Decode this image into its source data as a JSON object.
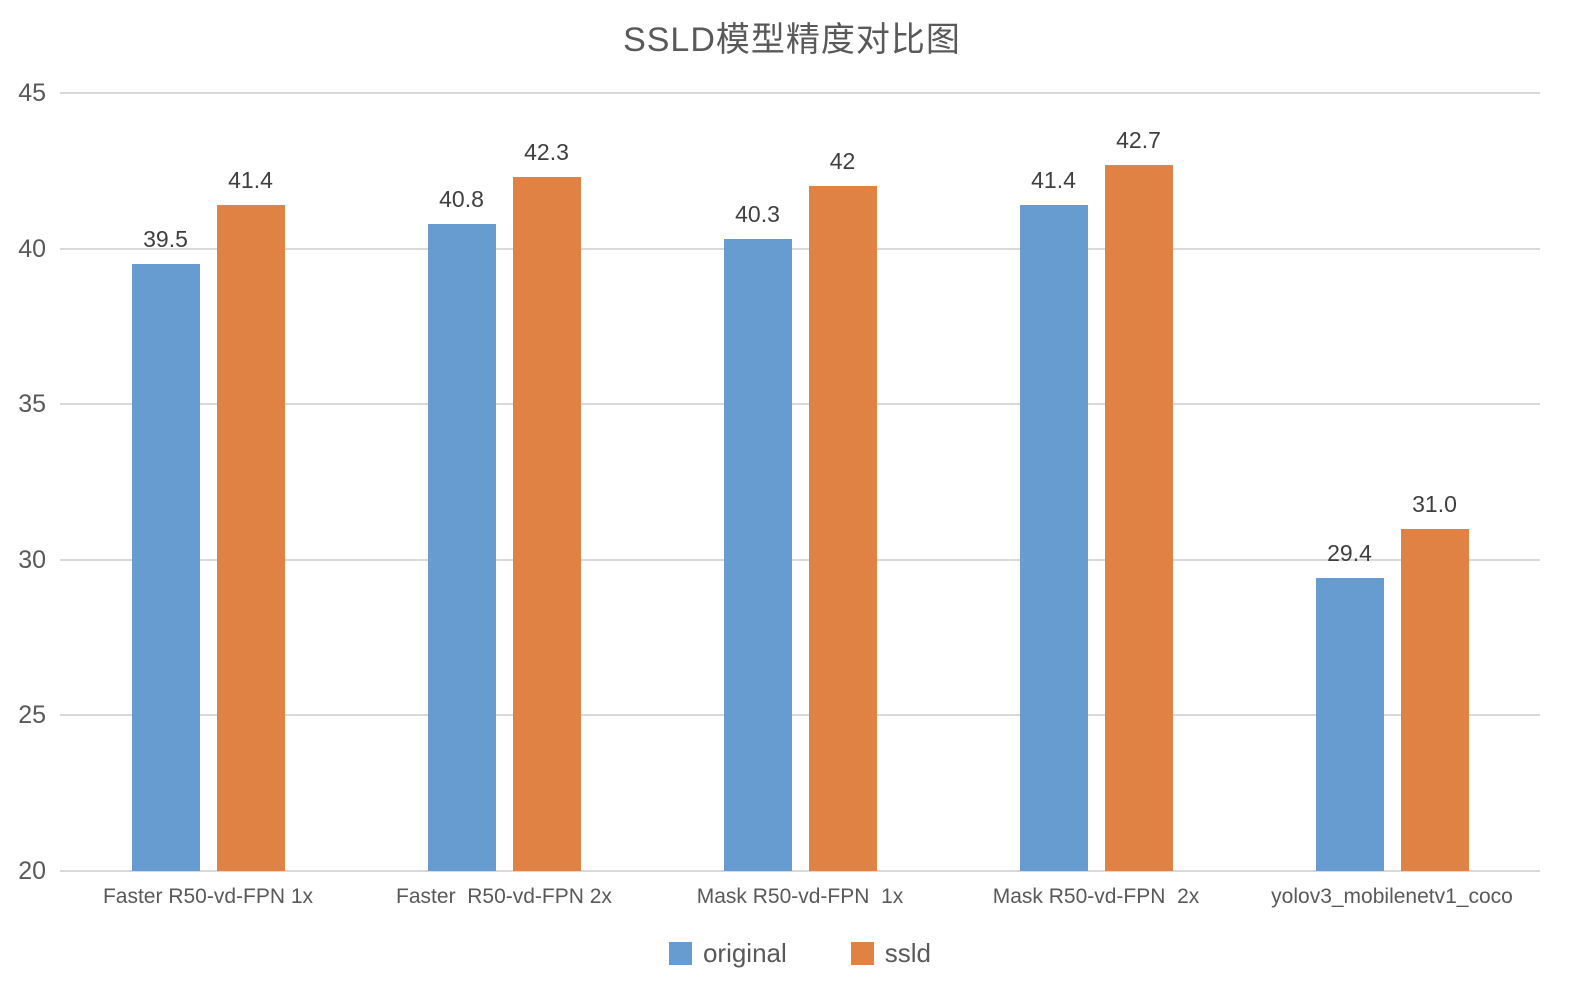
{
  "chart_data": {
    "type": "bar",
    "title": "SSLD模型精度对比图",
    "categories": [
      "Faster R50-vd-FPN 1x",
      "Faster  R50-vd-FPN 2x",
      "Mask R50-vd-FPN  1x",
      "Mask R50-vd-FPN  2x",
      "yolov3_mobilenetv1_coco"
    ],
    "series": [
      {
        "name": "original",
        "color": "#679CD1",
        "values": [
          39.5,
          40.8,
          40.3,
          41.4,
          29.4
        ],
        "labels": [
          "39.5",
          "40.8",
          "40.3",
          "41.4",
          "29.4"
        ]
      },
      {
        "name": "ssld",
        "color": "#E08244",
        "values": [
          41.4,
          42.3,
          42,
          42.7,
          31.0
        ],
        "labels": [
          "41.4",
          "42.3",
          "42",
          "42.7",
          "31.0"
        ]
      }
    ],
    "xlabel": "",
    "ylabel": "",
    "ylim": [
      20,
      45
    ],
    "yticks": [
      20,
      25,
      30,
      35,
      40,
      45
    ],
    "grid": true,
    "legend_position": "bottom",
    "colors": {
      "title_text": "#595959",
      "axis_text": "#595959",
      "data_label_text": "#3f3f3f",
      "gridline": "#d9d9d9"
    }
  }
}
